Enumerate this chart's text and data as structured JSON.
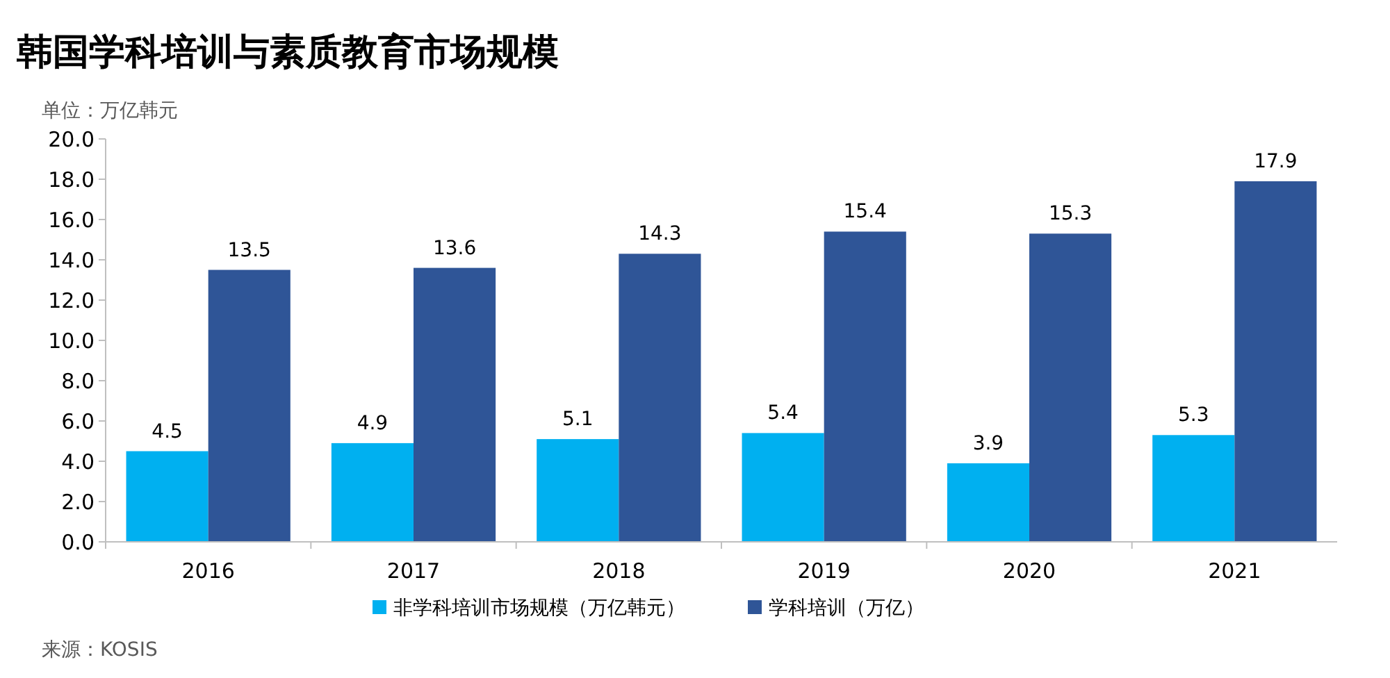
{
  "chart_data": {
    "type": "bar",
    "title": "韩国学科培训与素质教育市场规模",
    "subtitle": "单位：万亿韩元",
    "categories": [
      "2016",
      "2017",
      "2018",
      "2019",
      "2020",
      "2021"
    ],
    "series": [
      {
        "name": "非学科培训市场规模（万亿韩元）",
        "color": "#00b0f0",
        "values": [
          4.5,
          4.9,
          5.1,
          5.4,
          3.9,
          5.3
        ]
      },
      {
        "name": "学科培训（万亿）",
        "color": "#2f5597",
        "values": [
          13.5,
          13.6,
          14.3,
          15.4,
          15.3,
          17.9
        ]
      }
    ],
    "ylim": [
      0,
      20
    ],
    "yticks": [
      {
        "value": 0,
        "label": "0.0"
      },
      {
        "value": 2,
        "label": "2.0"
      },
      {
        "value": 4,
        "label": "4.0"
      },
      {
        "value": 6,
        "label": "6.0"
      },
      {
        "value": 8,
        "label": "8.0"
      },
      {
        "value": 10,
        "label": "10.0"
      },
      {
        "value": 12,
        "label": "12.0"
      },
      {
        "value": 14,
        "label": "14.0"
      },
      {
        "value": 16,
        "label": "16.0"
      },
      {
        "value": 18,
        "label": "18.0"
      },
      {
        "value": 20,
        "label": "20.0"
      }
    ],
    "data_labels": true,
    "grid": false,
    "legend": "bottom",
    "annotations": [
      "来源：KOSIS"
    ]
  }
}
